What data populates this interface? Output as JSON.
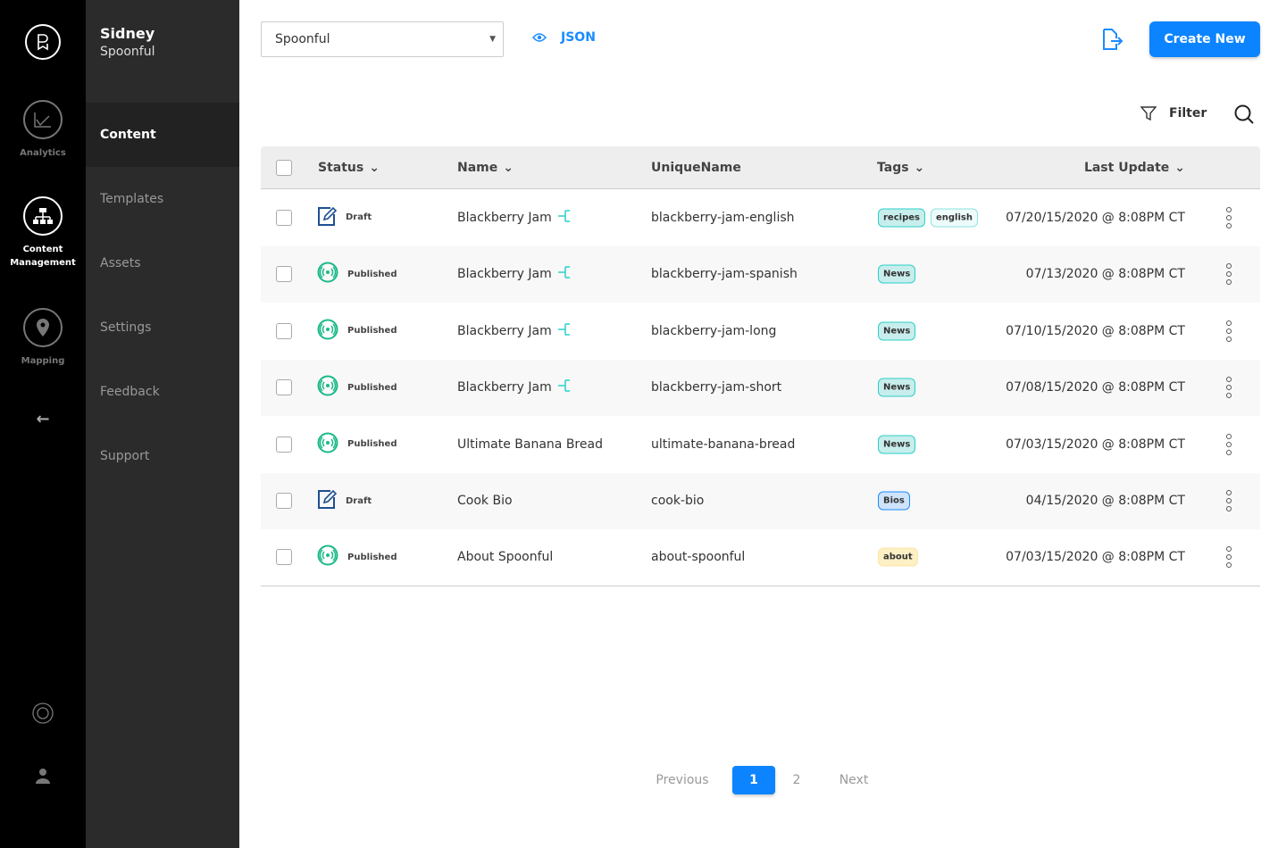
{
  "rail": {
    "items": [
      {
        "label": "Analytics",
        "icon": "chart-icon"
      },
      {
        "label": "Content Management",
        "icon": "sitemap-icon",
        "active": true
      },
      {
        "label": "Mapping",
        "icon": "map-pin-icon"
      }
    ]
  },
  "sidebar": {
    "org_name": "Sidney",
    "org_sub": "Spoonful",
    "items": [
      {
        "label": "Content",
        "active": true
      },
      {
        "label": "Templates"
      },
      {
        "label": "Assets"
      },
      {
        "label": "Settings"
      },
      {
        "label": "Feedback"
      },
      {
        "label": "Support"
      }
    ]
  },
  "toolbar": {
    "select_value": "Spoonful",
    "json_label": "JSON",
    "create_label": "Create New",
    "filter_label": "Filter"
  },
  "table": {
    "headers": {
      "status": "Status",
      "name": "Name",
      "unique": "UniqueName",
      "tags": "Tags",
      "updated": "Last Update"
    },
    "rows": [
      {
        "status": "Draft",
        "name": "Blackberry Jam",
        "linked": true,
        "unique": "blackberry-jam-english",
        "tags": [
          "recipes",
          "english"
        ],
        "updated": "07/20/15/2020 @ 8:08PM CT"
      },
      {
        "status": "Published",
        "name": "Blackberry Jam",
        "linked": true,
        "unique": "blackberry-jam-spanish",
        "tags": [
          "News"
        ],
        "updated": "07/13/2020 @ 8:08PM CT"
      },
      {
        "status": "Published",
        "name": "Blackberry Jam",
        "linked": true,
        "unique": "blackberry-jam-long",
        "tags": [
          "News"
        ],
        "updated": "07/10/15/2020 @ 8:08PM CT"
      },
      {
        "status": "Published",
        "name": "Blackberry Jam",
        "linked": true,
        "unique": "blackberry-jam-short",
        "tags": [
          "News"
        ],
        "updated": "07/08/15/2020 @ 8:08PM CT"
      },
      {
        "status": "Published",
        "name": "Ultimate Banana Bread",
        "linked": false,
        "unique": "ultimate-banana-bread",
        "tags": [
          "News"
        ],
        "updated": "07/03/15/2020 @ 8:08PM CT"
      },
      {
        "status": "Draft",
        "name": "Cook Bio",
        "linked": false,
        "unique": "cook-bio",
        "tags": [
          "Bios"
        ],
        "updated": "04/15/2020 @ 8:08PM CT"
      },
      {
        "status": "Published",
        "name": "About Spoonful",
        "linked": false,
        "unique": "about-spoonful",
        "tags": [
          "about"
        ],
        "updated": "07/03/15/2020 @ 8:08PM CT"
      }
    ]
  },
  "pagination": {
    "previous": "Previous",
    "pages": [
      "1",
      "2"
    ],
    "current": "1",
    "next": "Next"
  },
  "colors": {
    "accent": "#0d84ff",
    "published": "#1bb98a",
    "draft": "#1d4f91",
    "link": "#2ad0c8"
  }
}
